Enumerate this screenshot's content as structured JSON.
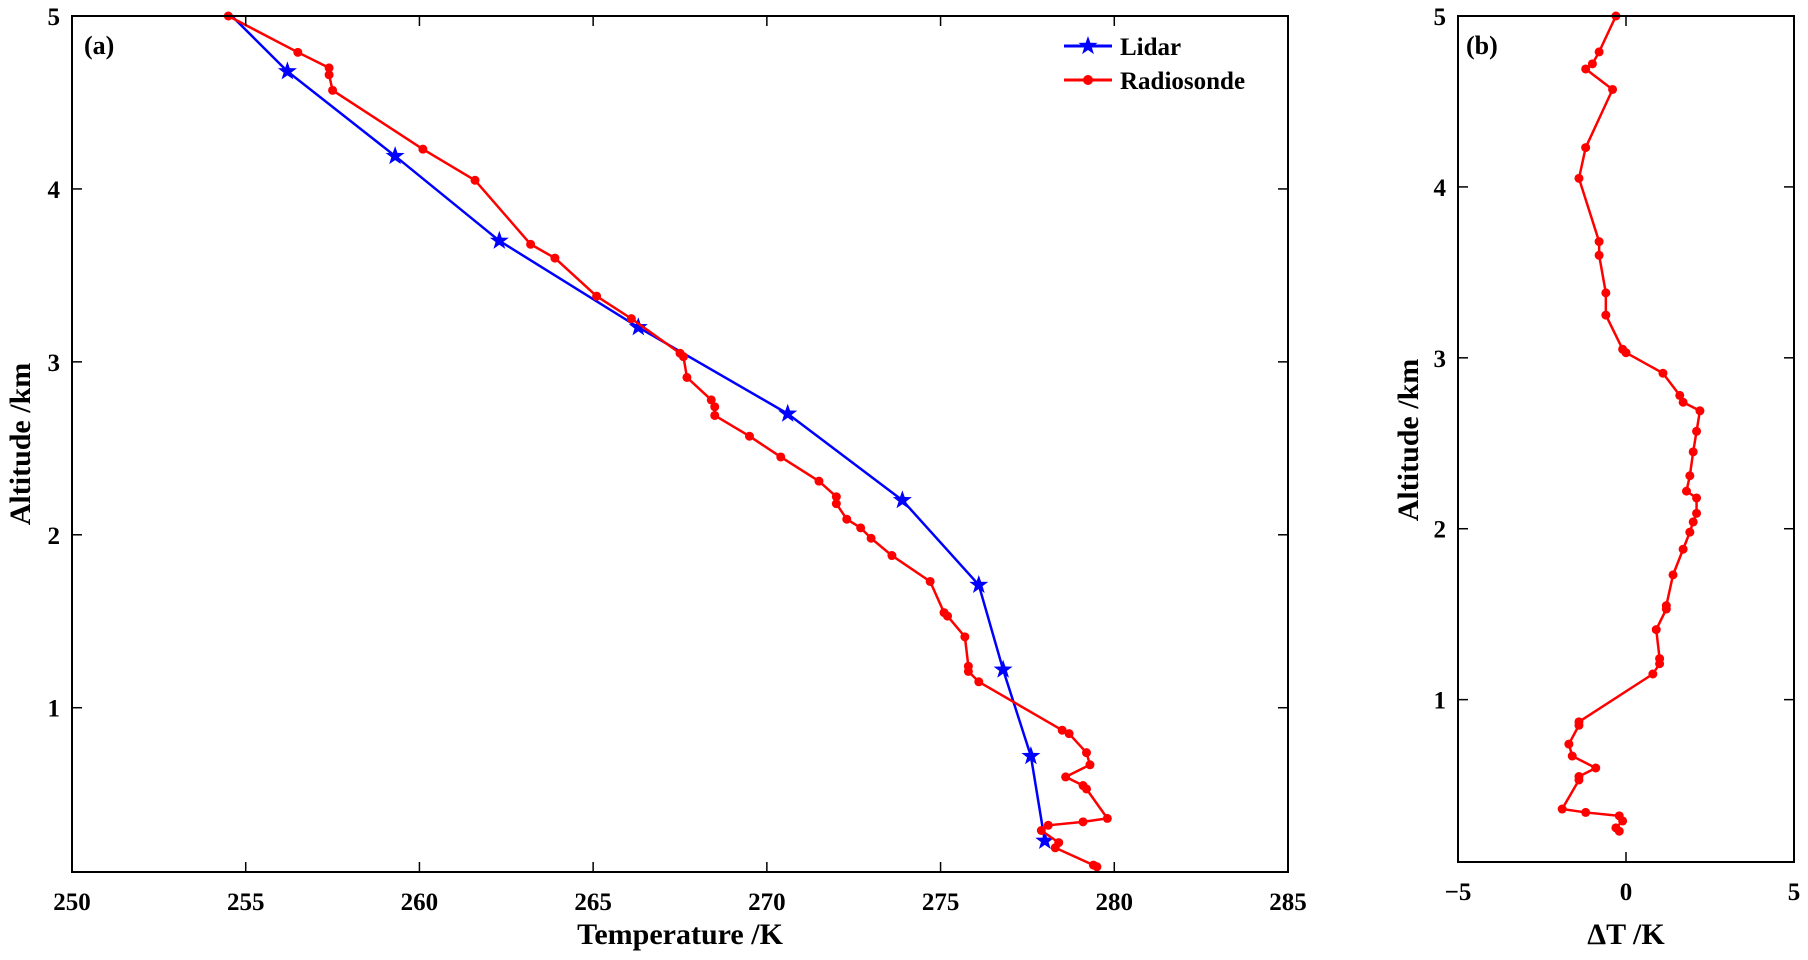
{
  "chart_data": [
    {
      "type": "line",
      "panel_label": "(a)",
      "xlabel": "Temperature /K",
      "ylabel": "Altitude /km",
      "xlim": [
        250,
        285
      ],
      "ylim": [
        0.05,
        5
      ],
      "xticks": [
        250,
        255,
        260,
        265,
        270,
        275,
        280,
        285
      ],
      "yticks": [
        1,
        2,
        3,
        4,
        5
      ],
      "grid": false,
      "legend_position": "top-right",
      "series": [
        {
          "name": "Lidar",
          "color": "#0000ff",
          "marker": "star",
          "points": [
            [
              254.6,
              5.0
            ],
            [
              256.2,
              4.68
            ],
            [
              259.3,
              4.19
            ],
            [
              262.3,
              3.7
            ],
            [
              266.3,
              3.2
            ],
            [
              270.6,
              2.7
            ],
            [
              273.9,
              2.2
            ],
            [
              276.1,
              1.71
            ],
            [
              276.8,
              1.22
            ],
            [
              277.6,
              0.72
            ],
            [
              278.0,
              0.23
            ]
          ]
        },
        {
          "name": "Radiosonde",
          "color": "#ff0000",
          "marker": "dot",
          "points": [
            [
              254.5,
              5.0
            ],
            [
              256.5,
              4.79
            ],
            [
              257.4,
              4.7
            ],
            [
              257.4,
              4.66
            ],
            [
              257.5,
              4.57
            ],
            [
              260.1,
              4.23
            ],
            [
              261.6,
              4.05
            ],
            [
              263.2,
              3.68
            ],
            [
              263.9,
              3.6
            ],
            [
              265.1,
              3.38
            ],
            [
              266.1,
              3.25
            ],
            [
              267.5,
              3.05
            ],
            [
              267.6,
              3.03
            ],
            [
              267.7,
              2.91
            ],
            [
              268.4,
              2.78
            ],
            [
              268.5,
              2.74
            ],
            [
              268.5,
              2.69
            ],
            [
              269.5,
              2.57
            ],
            [
              270.4,
              2.45
            ],
            [
              271.5,
              2.31
            ],
            [
              272.0,
              2.22
            ],
            [
              272.0,
              2.18
            ],
            [
              272.3,
              2.09
            ],
            [
              272.7,
              2.04
            ],
            [
              273.0,
              1.98
            ],
            [
              273.6,
              1.88
            ],
            [
              274.7,
              1.73
            ],
            [
              275.1,
              1.55
            ],
            [
              275.2,
              1.53
            ],
            [
              275.7,
              1.41
            ],
            [
              275.8,
              1.24
            ],
            [
              275.8,
              1.21
            ],
            [
              276.1,
              1.15
            ],
            [
              278.5,
              0.87
            ],
            [
              278.7,
              0.85
            ],
            [
              279.2,
              0.74
            ],
            [
              279.3,
              0.67
            ],
            [
              278.6,
              0.6
            ],
            [
              279.1,
              0.55
            ],
            [
              279.2,
              0.53
            ],
            [
              279.8,
              0.36
            ],
            [
              279.1,
              0.34
            ],
            [
              278.1,
              0.32
            ],
            [
              277.9,
              0.29
            ],
            [
              278.4,
              0.22
            ],
            [
              278.3,
              0.19
            ],
            [
              279.4,
              0.09
            ],
            [
              279.5,
              0.08
            ]
          ]
        }
      ]
    },
    {
      "type": "line",
      "panel_label": "(b)",
      "xlabel": "ΔT /K",
      "ylabel": "Altitude /km",
      "xlim": [
        -5,
        5
      ],
      "ylim": [
        0.05,
        5
      ],
      "xticks": [
        -5,
        0,
        5
      ],
      "yticks": [
        1,
        2,
        3,
        4,
        5
      ],
      "grid": false,
      "series": [
        {
          "color": "#ff0000",
          "marker": "dot",
          "points": [
            [
              -0.3,
              5.0
            ],
            [
              -0.8,
              4.79
            ],
            [
              -1.0,
              4.72
            ],
            [
              -1.2,
              4.69
            ],
            [
              -0.4,
              4.57
            ],
            [
              -1.2,
              4.23
            ],
            [
              -1.4,
              4.05
            ],
            [
              -0.8,
              3.68
            ],
            [
              -0.8,
              3.6
            ],
            [
              -0.6,
              3.38
            ],
            [
              -0.6,
              3.25
            ],
            [
              -0.1,
              3.05
            ],
            [
              0.0,
              3.03
            ],
            [
              1.1,
              2.91
            ],
            [
              1.6,
              2.78
            ],
            [
              1.7,
              2.74
            ],
            [
              2.2,
              2.69
            ],
            [
              2.1,
              2.57
            ],
            [
              2.0,
              2.45
            ],
            [
              1.9,
              2.31
            ],
            [
              1.8,
              2.22
            ],
            [
              2.1,
              2.18
            ],
            [
              2.1,
              2.09
            ],
            [
              2.0,
              2.04
            ],
            [
              1.9,
              1.98
            ],
            [
              1.7,
              1.88
            ],
            [
              1.4,
              1.73
            ],
            [
              1.2,
              1.55
            ],
            [
              1.2,
              1.53
            ],
            [
              0.9,
              1.41
            ],
            [
              1.0,
              1.24
            ],
            [
              1.0,
              1.21
            ],
            [
              0.8,
              1.15
            ],
            [
              -1.4,
              0.87
            ],
            [
              -1.4,
              0.85
            ],
            [
              -1.7,
              0.74
            ],
            [
              -1.6,
              0.67
            ],
            [
              -0.9,
              0.6
            ],
            [
              -1.4,
              0.55
            ],
            [
              -1.4,
              0.53
            ],
            [
              -1.9,
              0.36
            ],
            [
              -1.2,
              0.34
            ],
            [
              -0.2,
              0.32
            ],
            [
              -0.1,
              0.29
            ],
            [
              -0.3,
              0.25
            ],
            [
              -0.2,
              0.23
            ]
          ]
        }
      ]
    }
  ]
}
